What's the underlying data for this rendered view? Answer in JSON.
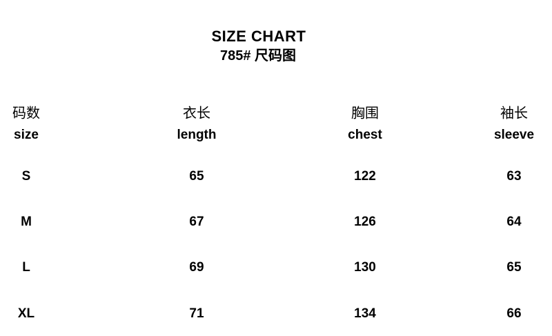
{
  "page": {
    "title": "SIZE CHART",
    "subtitle": "785# 尺码图"
  },
  "chart_data": {
    "type": "table",
    "title": "SIZE CHART",
    "subtitle": "785# 尺码图",
    "columns": [
      {
        "zh": "码数",
        "en": "size"
      },
      {
        "zh": "衣长",
        "en": "length"
      },
      {
        "zh": "胸围",
        "en": "chest"
      },
      {
        "zh": "袖长",
        "en": "sleeve"
      }
    ],
    "rows": [
      {
        "size": "S",
        "length": "65",
        "chest": "122",
        "sleeve": "63"
      },
      {
        "size": "M",
        "length": "67",
        "chest": "126",
        "sleeve": "64"
      },
      {
        "size": "L",
        "length": "69",
        "chest": "130",
        "sleeve": "65"
      },
      {
        "size": "XL",
        "length": "71",
        "chest": "134",
        "sleeve": "66"
      }
    ]
  }
}
